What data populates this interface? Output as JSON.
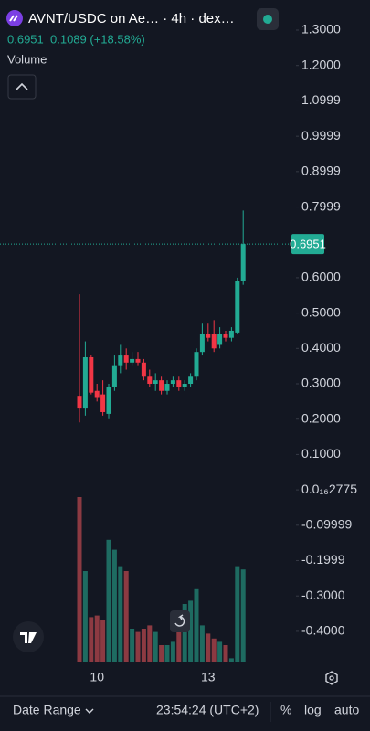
{
  "header": {
    "title": "AVNT/USDC on Ae… · 4h · dex…",
    "change": "0.1089 (+18.58%)",
    "indicator": "Volume"
  },
  "chart_data": {
    "type": "candlestick",
    "categories": [
      null,
      null,
      null,
      "10",
      null,
      null,
      null,
      null,
      null,
      null,
      null,
      null,
      null,
      null,
      null,
      null,
      null,
      null,
      null,
      null,
      null,
      null,
      "13",
      null,
      null,
      null,
      null,
      null,
      null
    ],
    "open": [
      0.266,
      0.23,
      0.375,
      0.28,
      0.27,
      0.215,
      0.29,
      0.35,
      0.38,
      0.36,
      0.37,
      0.36,
      0.32,
      0.3,
      0.31,
      0.28,
      0.3,
      0.31,
      0.29,
      0.3,
      0.32,
      0.39,
      0.44,
      0.44,
      0.41,
      0.44,
      0.43,
      0.445,
      0.59
    ],
    "high": [
      0.553,
      0.42,
      0.38,
      0.3,
      0.31,
      0.3,
      0.38,
      0.41,
      0.4,
      0.39,
      0.39,
      0.37,
      0.34,
      0.33,
      0.32,
      0.31,
      0.32,
      0.32,
      0.31,
      0.33,
      0.4,
      0.47,
      0.47,
      0.48,
      0.46,
      0.45,
      0.46,
      0.6,
      0.79
    ],
    "low": [
      0.191,
      0.21,
      0.27,
      0.25,
      0.21,
      0.2,
      0.28,
      0.33,
      0.34,
      0.35,
      0.35,
      0.31,
      0.29,
      0.28,
      0.27,
      0.27,
      0.29,
      0.28,
      0.28,
      0.29,
      0.31,
      0.38,
      0.42,
      0.39,
      0.4,
      0.42,
      0.42,
      0.44,
      0.58
    ],
    "close": [
      0.23,
      0.375,
      0.275,
      0.26,
      0.22,
      0.29,
      0.35,
      0.38,
      0.36,
      0.37,
      0.36,
      0.32,
      0.3,
      0.31,
      0.28,
      0.3,
      0.31,
      0.29,
      0.3,
      0.32,
      0.39,
      0.44,
      0.43,
      0.4,
      0.44,
      0.43,
      0.45,
      0.59,
      0.6951
    ],
    "volume": [
      100,
      55,
      27,
      28,
      25,
      74,
      68,
      58,
      55,
      20,
      18,
      20,
      22,
      18,
      10,
      10,
      12,
      22,
      35,
      37,
      44,
      22,
      17,
      14,
      12,
      10,
      2,
      58,
      56
    ],
    "up_color": "#22ab94",
    "down_color": "#f23645",
    "up_volume_color": "#1e6b61",
    "down_volume_color": "#8c3a42",
    "ylim": [
      -0.4855,
      1.3853
    ],
    "yticks": [
      {
        "value": 1.3,
        "label": "1.3000"
      },
      {
        "value": 1.2,
        "label": "1.2000"
      },
      {
        "value": 1.0999,
        "label": "1.0999"
      },
      {
        "value": 0.9999,
        "label": "0.9999"
      },
      {
        "value": 0.8999,
        "label": "0.8999"
      },
      {
        "value": 0.7999,
        "label": "0.7999"
      },
      {
        "value": 0.6,
        "label": "0.6000"
      },
      {
        "value": 0.5,
        "label": "0.5000"
      },
      {
        "value": 0.4,
        "label": "0.4000"
      },
      {
        "value": 0.3,
        "label": "0.3000"
      },
      {
        "value": 0.2,
        "label": "0.2000"
      },
      {
        "value": 0.1,
        "label": "0.1000"
      },
      {
        "value": 2.775e-17,
        "label": "0.0₁₆2775"
      },
      -0.09999,
      -0.1999,
      {
        "value": -0.3,
        "label": "-0.3000"
      },
      {
        "value": -0.4,
        "label": "-0.4000"
      }
    ]
  },
  "footer": {
    "range": "Date Range",
    "time": "23:54:24 (UTC+2)",
    "percent": "%",
    "log": "log",
    "auto": "auto"
  }
}
